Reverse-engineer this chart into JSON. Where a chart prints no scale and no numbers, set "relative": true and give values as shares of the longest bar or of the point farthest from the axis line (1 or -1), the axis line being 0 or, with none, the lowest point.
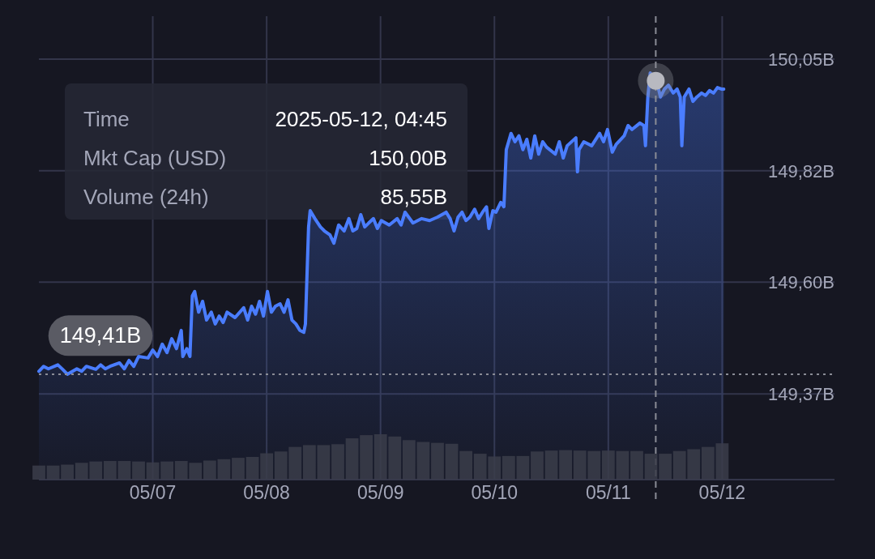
{
  "chart_data": [
    {
      "type": "area",
      "color": "#4a7dff",
      "x": [
        "2025-05-06T00:00",
        "2025-05-06T01:00",
        "2025-05-06T02:00",
        "2025-05-06T04:00",
        "2025-05-06T05:00",
        "2025-05-06T06:00",
        "2025-05-06T08:00",
        "2025-05-06T09:00",
        "2025-05-06T10:00",
        "2025-05-06T12:00",
        "2025-05-06T13:00",
        "2025-05-06T14:00",
        "2025-05-06T15:00",
        "2025-05-06T17:00",
        "2025-05-06T18:00",
        "2025-05-06T19:00",
        "2025-05-06T20:00",
        "2025-05-06T21:00",
        "2025-05-06T23:00",
        "2025-05-07T00:00",
        "2025-05-07T01:00",
        "2025-05-07T02:00",
        "2025-05-07T03:00",
        "2025-05-07T04:00",
        "2025-05-07T05:00",
        "2025-05-07T06:00",
        "2025-05-07T06:20",
        "2025-05-07T07:10",
        "2025-05-07T07:50",
        "2025-05-07T08:20",
        "2025-05-07T08:50",
        "2025-05-07T09:40",
        "2025-05-07T10:30",
        "2025-05-07T11:20",
        "2025-05-07T12:20",
        "2025-05-07T13:10",
        "2025-05-07T14:00",
        "2025-05-07T14:50",
        "2025-05-07T15:40",
        "2025-05-07T17:20",
        "2025-05-07T19:10",
        "2025-05-07T20:00",
        "2025-05-07T20:50",
        "2025-05-07T21:40",
        "2025-05-07T22:30",
        "2025-05-07T23:20",
        "2025-05-08T00:10",
        "2025-05-08T01:00",
        "2025-05-08T01:50",
        "2025-05-08T02:50",
        "2025-05-08T03:40",
        "2025-05-08T04:30",
        "2025-05-08T05:20",
        "2025-05-08T06:10",
        "2025-05-08T07:00",
        "2025-05-08T07:50",
        "2025-05-08T08:10",
        "2025-05-08T08:50",
        "2025-05-08T09:10",
        "2025-05-08T10:10",
        "2025-05-08T11:20",
        "2025-05-08T12:10",
        "2025-05-08T13:20",
        "2025-05-08T14:10",
        "2025-05-08T15:10",
        "2025-05-08T16:20",
        "2025-05-08T17:20",
        "2025-05-08T18:10",
        "2025-05-08T19:00",
        "2025-05-08T19:50",
        "2025-05-08T20:40",
        "2025-05-08T21:30",
        "2025-05-08T22:30",
        "2025-05-08T23:20",
        "2025-05-09T00:10",
        "2025-05-09T01:50",
        "2025-05-09T03:30",
        "2025-05-09T04:20",
        "2025-05-09T05:10",
        "2025-05-09T06:50",
        "2025-05-09T08:40",
        "2025-05-09T10:20",
        "2025-05-09T12:00",
        "2025-05-09T13:50",
        "2025-05-09T14:40",
        "2025-05-09T15:30",
        "2025-05-09T16:20",
        "2025-05-09T17:10",
        "2025-05-09T18:00",
        "2025-05-09T18:50",
        "2025-05-09T19:50",
        "2025-05-09T20:40",
        "2025-05-09T21:30",
        "2025-05-09T22:20",
        "2025-05-09T22:50",
        "2025-05-09T23:40",
        "2025-05-10T00:20",
        "2025-05-10T01:20",
        "2025-05-10T02:00",
        "2025-05-10T02:30",
        "2025-05-10T03:30",
        "2025-05-10T04:20",
        "2025-05-10T05:10",
        "2025-05-10T06:00",
        "2025-05-10T06:50",
        "2025-05-10T07:40",
        "2025-05-10T08:30",
        "2025-05-10T09:20",
        "2025-05-10T10:10",
        "2025-05-10T11:00",
        "2025-05-10T12:50",
        "2025-05-10T13:40",
        "2025-05-10T14:30",
        "2025-05-10T15:20",
        "2025-05-10T17:10",
        "2025-05-10T17:30",
        "2025-05-10T17:50",
        "2025-05-10T18:50",
        "2025-05-10T20:30",
        "2025-05-10T22:10",
        "2025-05-10T23:00",
        "2025-05-10T23:50",
        "2025-05-11T00:50",
        "2025-05-11T01:40",
        "2025-05-11T03:20",
        "2025-05-11T04:10",
        "2025-05-11T05:00",
        "2025-05-11T06:40",
        "2025-05-11T07:30",
        "2025-05-11T07:50",
        "2025-05-11T08:20",
        "2025-05-11T08:50",
        "2025-05-11T09:30",
        "2025-05-11T10:10",
        "2025-05-11T11:00",
        "2025-05-11T11:50",
        "2025-05-11T12:40",
        "2025-05-11T13:40",
        "2025-05-11T14:30",
        "2025-05-11T15:10",
        "2025-05-11T15:30",
        "2025-05-11T16:00",
        "2025-05-11T17:00",
        "2025-05-11T17:50",
        "2025-05-11T18:40",
        "2025-05-11T19:40",
        "2025-05-11T20:30",
        "2025-05-11T21:20",
        "2025-05-11T22:10",
        "2025-05-11T23:00",
        "2025-05-11T23:50",
        "2025-05-12T00:20"
      ],
      "values": [
        149.416,
        149.426,
        149.421,
        149.429,
        149.42,
        149.41,
        149.421,
        149.416,
        149.426,
        149.42,
        149.429,
        149.421,
        149.426,
        149.433,
        149.421,
        149.438,
        149.426,
        149.446,
        149.443,
        149.459,
        149.446,
        149.471,
        149.454,
        149.482,
        149.462,
        149.499,
        149.446,
        149.462,
        149.446,
        149.569,
        149.578,
        149.536,
        149.558,
        149.52,
        149.536,
        149.512,
        149.528,
        149.515,
        149.536,
        149.525,
        149.545,
        149.52,
        149.548,
        149.532,
        149.558,
        149.528,
        149.578,
        149.536,
        149.548,
        149.553,
        149.536,
        149.561,
        149.52,
        149.512,
        149.499,
        149.495,
        149.512,
        149.709,
        149.742,
        149.726,
        149.709,
        149.701,
        149.693,
        149.676,
        149.713,
        149.701,
        149.726,
        149.701,
        149.706,
        149.734,
        149.709,
        149.717,
        149.726,
        149.706,
        149.722,
        149.713,
        149.726,
        149.713,
        149.739,
        149.717,
        149.726,
        149.722,
        149.729,
        149.739,
        149.726,
        149.701,
        149.729,
        149.739,
        149.722,
        149.729,
        149.745,
        149.726,
        149.739,
        149.75,
        149.706,
        149.742,
        149.739,
        149.759,
        149.75,
        149.866,
        149.899,
        149.882,
        149.894,
        149.866,
        149.887,
        149.849,
        149.894,
        149.857,
        149.882,
        149.871,
        149.857,
        149.882,
        149.849,
        149.874,
        149.89,
        149.821,
        149.866,
        149.882,
        149.874,
        149.899,
        149.882,
        149.907,
        149.861,
        149.877,
        149.894,
        149.915,
        149.907,
        149.92,
        149.915,
        149.874,
        149.973,
        150.022,
        150.014,
        150.006,
        149.973,
        149.989,
        149.997,
        149.981,
        149.989,
        149.973,
        149.874,
        149.973,
        149.989,
        149.964,
        149.973,
        149.981,
        149.976,
        149.986,
        149.981,
        149.992,
        149.989,
        149.989
      ],
      "xlim": [
        "2025-05-06T00:00",
        "2025-05-12T23:40"
      ],
      "xticks": [
        {
          "value": "2025-05-07",
          "label": null
        },
        {
          "value": "2025-05-08",
          "label": null
        },
        {
          "value": "2025-05-09",
          "label": null
        },
        {
          "value": "2025-05-10",
          "label": null
        },
        {
          "value": "2025-05-11",
          "label": null
        },
        {
          "value": "2025-05-12",
          "label": null
        }
      ],
      "ylim": [
        149.196,
        150.137
      ],
      "yticks": [
        {
          "value": 149.37,
          "label": "149,37B"
        },
        {
          "value": 149.597,
          "label": "149,60B"
        },
        {
          "value": 149.823,
          "label": "149,82B"
        },
        {
          "value": 150.05,
          "label": "150,05B"
        }
      ],
      "grid": true,
      "tick_labels": "y",
      "ref_lines": [
        {
          "axis": "y",
          "value": 149.41,
          "label": "149,41B",
          "line_style": "dotted",
          "color": "#8a8c96"
        },
        {
          "axis": "x",
          "value": "2025-05-11T10:00",
          "label": null,
          "line_style": "dashed",
          "color": "#8a8c96"
        }
      ],
      "annotations": [
        "Time",
        "2025-05-12, 04:45",
        "Mkt Cap (USD)",
        "150,00B",
        "Volume (24h)",
        "85,55B"
      ]
    },
    {
      "type": "bar",
      "relative": true,
      "color": "#3b3d4a",
      "x": [
        "2025-05-06T00:00",
        "2025-05-06T03:00",
        "2025-05-06T06:00",
        "2025-05-06T09:00",
        "2025-05-06T12:00",
        "2025-05-06T15:00",
        "2025-05-06T18:00",
        "2025-05-06T21:00",
        "2025-05-07T00:00",
        "2025-05-07T03:00",
        "2025-05-07T06:00",
        "2025-05-07T09:00",
        "2025-05-07T12:00",
        "2025-05-07T15:00",
        "2025-05-07T18:00",
        "2025-05-07T21:00",
        "2025-05-08T00:00",
        "2025-05-08T03:00",
        "2025-05-08T06:00",
        "2025-05-08T09:00",
        "2025-05-08T12:00",
        "2025-05-08T15:00",
        "2025-05-08T18:00",
        "2025-05-08T21:00",
        "2025-05-09T00:00",
        "2025-05-09T03:00",
        "2025-05-09T06:00",
        "2025-05-09T09:00",
        "2025-05-09T12:00",
        "2025-05-09T15:00",
        "2025-05-09T18:00",
        "2025-05-09T21:00",
        "2025-05-10T00:00",
        "2025-05-10T03:00",
        "2025-05-10T06:00",
        "2025-05-10T09:00",
        "2025-05-10T12:00",
        "2025-05-10T15:00",
        "2025-05-10T18:00",
        "2025-05-10T21:00",
        "2025-05-11T00:00",
        "2025-05-11T03:00",
        "2025-05-11T06:00",
        "2025-05-11T09:00",
        "2025-05-11T12:00",
        "2025-05-11T15:00",
        "2025-05-11T18:00",
        "2025-05-11T21:00",
        "2025-05-12T00:00"
      ],
      "values": [
        0.31,
        0.31,
        0.33,
        0.37,
        0.4,
        0.41,
        0.41,
        0.4,
        0.38,
        0.4,
        0.41,
        0.37,
        0.42,
        0.45,
        0.48,
        0.5,
        0.58,
        0.62,
        0.72,
        0.76,
        0.76,
        0.78,
        0.91,
        0.98,
        1.0,
        0.95,
        0.87,
        0.83,
        0.81,
        0.79,
        0.63,
        0.57,
        0.51,
        0.52,
        0.52,
        0.62,
        0.64,
        0.65,
        0.64,
        0.63,
        0.64,
        0.63,
        0.63,
        0.57,
        0.57,
        0.63,
        0.67,
        0.72,
        0.8
      ],
      "xlim": [
        "2025-05-06T00:00",
        "2025-05-12T23:40"
      ],
      "xticks": [
        {
          "value": "2025-05-07",
          "label": "05/07"
        },
        {
          "value": "2025-05-08",
          "label": "05/08"
        },
        {
          "value": "2025-05-09",
          "label": "05/09"
        },
        {
          "value": "2025-05-10",
          "label": "05/10"
        },
        {
          "value": "2025-05-11",
          "label": "05/11"
        },
        {
          "value": "2025-05-12",
          "label": "05/12"
        }
      ],
      "tick_labels": "x"
    }
  ]
}
